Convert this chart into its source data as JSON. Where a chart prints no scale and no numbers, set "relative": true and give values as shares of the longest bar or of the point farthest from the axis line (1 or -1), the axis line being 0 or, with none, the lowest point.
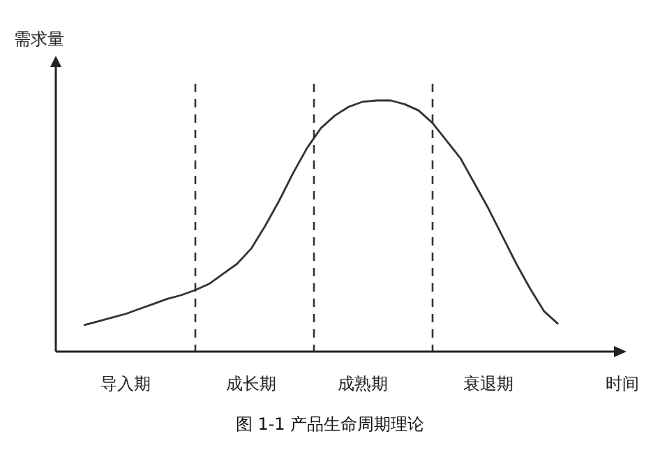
{
  "chart_data": {
    "type": "line",
    "title": "图 1-1 产品生命周期理论",
    "xlabel": "时间",
    "ylabel": "需求量",
    "relative": true,
    "categories": [
      null,
      null,
      null,
      null,
      null,
      "导入期",
      null,
      null,
      null,
      null,
      null,
      null,
      null,
      null,
      "成长期",
      null,
      null,
      null,
      null,
      null,
      null,
      null,
      "成熟期",
      null,
      null,
      null,
      null,
      null,
      null,
      null,
      null,
      "衰退期",
      null,
      null,
      null,
      null,
      null,
      null,
      null,
      null,
      null
    ],
    "series": [
      {
        "color": "#333333",
        "values": [
          null,
          null,
          0.105,
          0.12,
          0.135,
          0.15,
          0.17,
          0.19,
          0.21,
          0.225,
          0.245,
          0.27,
          0.31,
          0.35,
          0.41,
          0.5,
          0.6,
          0.71,
          0.81,
          0.89,
          0.94,
          0.975,
          0.995,
          1,
          1,
          0.985,
          0.96,
          0.91,
          0.84,
          0.77,
          0.67,
          0.57,
          0.46,
          0.35,
          0.25,
          0.16,
          0.11,
          null,
          null,
          null,
          null
        ]
      }
    ]
  }
}
